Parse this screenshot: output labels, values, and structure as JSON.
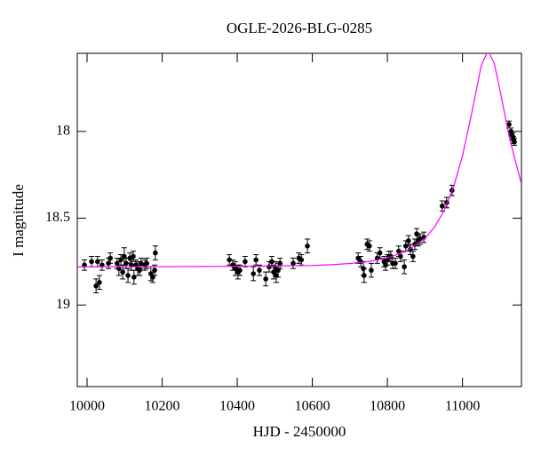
{
  "chart_data": {
    "type": "scatter",
    "title": "OGLE-2026-BLG-0285",
    "x_label": "HJD - 2450000",
    "y_label": "I magnitude",
    "xlim": [
      9974,
      11157
    ],
    "ylim": [
      17.55,
      19.47
    ],
    "y_inverted": true,
    "xticks": [
      10000,
      10200,
      10400,
      10600,
      10800,
      11000
    ],
    "yticks": [
      18,
      18.5,
      19
    ],
    "grid": false,
    "series": [
      {
        "style": "points",
        "color": "#000000",
        "x": [
          9993,
          10012,
          10024,
          10028,
          10033,
          10040,
          10057,
          10062,
          10080,
          10085,
          10090,
          10095,
          10099,
          10104,
          10109,
          10114,
          10118,
          10123,
          10125,
          10130,
          10135,
          10140,
          10144,
          10154,
          10159,
          10170,
          10175,
          10180,
          10182,
          10379,
          10388,
          10395,
          10402,
          10407,
          10421,
          10443,
          10450,
          10459,
          10476,
          10485,
          10492,
          10497,
          10502,
          10504,
          10509,
          10514,
          10549,
          10564,
          10571,
          10587,
          10722,
          10729,
          10736,
          10738,
          10746,
          10752,
          10757,
          10773,
          10780,
          10791,
          10795,
          10800,
          10804,
          10809,
          10814,
          10821,
          10830,
          10835,
          10845,
          10849,
          10856,
          10861,
          10868,
          10873,
          10878,
          10882,
          10887,
          10897,
          10946,
          10958,
          10972,
          11124,
          11129,
          11131,
          11134,
          11136,
          11138
        ],
        "values": [
          18.77,
          18.75,
          18.89,
          18.75,
          18.87,
          18.77,
          18.76,
          18.73,
          18.76,
          18.79,
          18.74,
          18.81,
          18.72,
          18.76,
          18.83,
          18.73,
          18.77,
          18.72,
          18.84,
          18.77,
          18.79,
          18.8,
          18.76,
          18.77,
          18.76,
          18.82,
          18.84,
          18.8,
          18.7,
          18.74,
          18.77,
          18.79,
          18.81,
          18.8,
          18.75,
          18.82,
          18.74,
          18.8,
          18.85,
          18.78,
          18.75,
          18.81,
          18.79,
          18.83,
          18.8,
          18.76,
          18.76,
          18.73,
          18.74,
          18.66,
          18.73,
          18.75,
          18.79,
          18.83,
          18.65,
          18.66,
          18.8,
          18.73,
          18.7,
          18.75,
          18.77,
          18.74,
          18.72,
          18.72,
          18.76,
          18.76,
          18.69,
          18.72,
          18.78,
          18.66,
          18.63,
          18.68,
          18.72,
          18.65,
          18.59,
          18.63,
          18.62,
          18.61,
          18.43,
          18.41,
          18.34,
          17.96,
          18.0,
          18.02,
          18.03,
          18.05,
          18.06
        ],
        "errors": [
          0.03,
          0.03,
          0.04,
          0.03,
          0.04,
          0.03,
          0.03,
          0.03,
          0.03,
          0.04,
          0.03,
          0.04,
          0.05,
          0.03,
          0.04,
          0.03,
          0.03,
          0.03,
          0.04,
          0.03,
          0.04,
          0.03,
          0.03,
          0.03,
          0.03,
          0.04,
          0.03,
          0.03,
          0.04,
          0.03,
          0.03,
          0.04,
          0.04,
          0.03,
          0.03,
          0.04,
          0.03,
          0.03,
          0.04,
          0.03,
          0.03,
          0.04,
          0.04,
          0.04,
          0.04,
          0.03,
          0.03,
          0.03,
          0.03,
          0.04,
          0.03,
          0.03,
          0.04,
          0.04,
          0.03,
          0.03,
          0.04,
          0.03,
          0.03,
          0.03,
          0.03,
          0.03,
          0.03,
          0.03,
          0.03,
          0.03,
          0.03,
          0.03,
          0.04,
          0.03,
          0.03,
          0.03,
          0.03,
          0.03,
          0.03,
          0.03,
          0.03,
          0.03,
          0.03,
          0.03,
          0.03,
          0.02,
          0.02,
          0.02,
          0.02,
          0.02,
          0.02
        ]
      },
      {
        "style": "line",
        "color": "#ff00ff",
        "x": [
          9974,
          10100,
          10200,
          10300,
          10400,
          10500,
          10600,
          10650,
          10700,
          10750,
          10800,
          10850,
          10900,
          10925,
          10950,
          10975,
          11000,
          11025,
          11050,
          11068,
          11085,
          11100,
          11125,
          11157
        ],
        "values": [
          18.78,
          18.779,
          18.779,
          18.778,
          18.777,
          18.775,
          18.772,
          18.768,
          18.761,
          18.75,
          18.729,
          18.691,
          18.616,
          18.553,
          18.461,
          18.329,
          18.141,
          17.89,
          17.62,
          17.533,
          17.611,
          17.765,
          18.038,
          18.304
        ]
      }
    ]
  }
}
